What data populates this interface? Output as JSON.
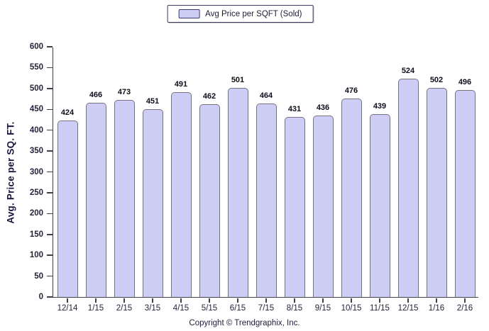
{
  "chart_data": {
    "type": "bar",
    "title": "",
    "legend": "Avg Price per SQFT (Sold)",
    "ylabel": "Avg. Price per SQ. FT.",
    "xlabel": "",
    "categories": [
      "12/14",
      "1/15",
      "2/15",
      "3/15",
      "4/15",
      "5/15",
      "6/15",
      "7/15",
      "8/15",
      "9/15",
      "10/15",
      "11/15",
      "12/15",
      "1/16",
      "2/16"
    ],
    "values": [
      424,
      466,
      473,
      451,
      491,
      462,
      501,
      464,
      431,
      436,
      476,
      439,
      524,
      502,
      496
    ],
    "ylim": [
      0,
      600
    ],
    "ytick_step": 50,
    "grid": false,
    "legend_position": "top-center",
    "bar_fill": "#cdcdf5",
    "bar_border": "#73737f"
  },
  "footer": {
    "copyright": "Copyright © Trendgraphix, Inc."
  }
}
